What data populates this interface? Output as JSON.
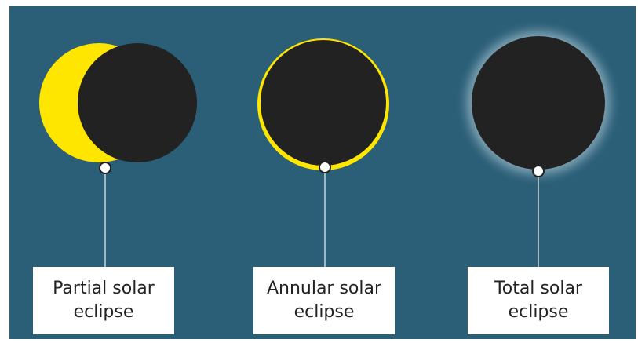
{
  "nodes": [
    {
      "label": "Partial solar eclipse"
    },
    {
      "label": "Annular solar eclipse"
    },
    {
      "label": "Total solar eclipse"
    }
  ]
}
